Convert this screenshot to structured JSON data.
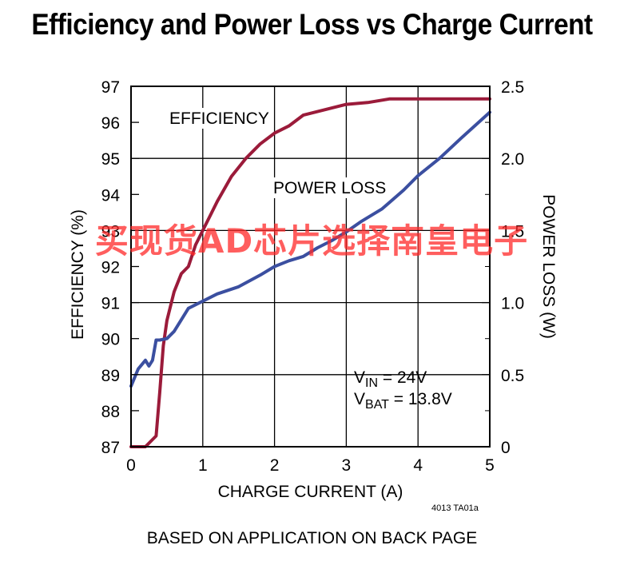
{
  "chart_data": {
    "type": "line",
    "title": "Efficiency and Power Loss vs Charge Current",
    "xlabel": "CHARGE CURRENT (A)",
    "ylabel_left": "EFFICIENCY (%)",
    "ylabel_right": "POWER LOSS (W)",
    "xlim": [
      0,
      5
    ],
    "ylim_left": [
      87,
      97
    ],
    "ylim_right": [
      0,
      2.5
    ],
    "x_ticks": [
      "0",
      "1",
      "2",
      "3",
      "4",
      "5"
    ],
    "y_ticks_left": [
      "87",
      "88",
      "89",
      "90",
      "91",
      "92",
      "93",
      "94",
      "95",
      "96",
      "97"
    ],
    "y_ticks_right": [
      "0",
      "0.5",
      "1.0",
      "1.5",
      "2.0",
      "2.5"
    ],
    "grid": true,
    "series": [
      {
        "name": "EFFICIENCY",
        "axis": "left",
        "color": "#9b1b3a",
        "points": [
          [
            0.0,
            87.0
          ],
          [
            0.2,
            87.0
          ],
          [
            0.3,
            87.2
          ],
          [
            0.35,
            87.3
          ],
          [
            0.4,
            88.5
          ],
          [
            0.45,
            89.8
          ],
          [
            0.5,
            90.5
          ],
          [
            0.6,
            91.3
          ],
          [
            0.7,
            91.8
          ],
          [
            0.8,
            92.0
          ],
          [
            0.9,
            92.6
          ],
          [
            1.0,
            93.0
          ],
          [
            1.1,
            93.4
          ],
          [
            1.2,
            93.8
          ],
          [
            1.4,
            94.5
          ],
          [
            1.6,
            95.0
          ],
          [
            1.8,
            95.4
          ],
          [
            2.0,
            95.7
          ],
          [
            2.2,
            95.9
          ],
          [
            2.4,
            96.2
          ],
          [
            2.6,
            96.3
          ],
          [
            2.8,
            96.4
          ],
          [
            3.0,
            96.5
          ],
          [
            3.3,
            96.55
          ],
          [
            3.6,
            96.65
          ],
          [
            4.0,
            96.65
          ],
          [
            4.5,
            96.65
          ],
          [
            5.0,
            96.65
          ]
        ]
      },
      {
        "name": "POWER LOSS",
        "axis": "right",
        "color": "#3b4fa0",
        "points": [
          [
            0.0,
            0.42
          ],
          [
            0.1,
            0.54
          ],
          [
            0.2,
            0.6
          ],
          [
            0.25,
            0.56
          ],
          [
            0.3,
            0.6
          ],
          [
            0.35,
            0.74
          ],
          [
            0.4,
            0.74
          ],
          [
            0.5,
            0.75
          ],
          [
            0.6,
            0.8
          ],
          [
            0.7,
            0.88
          ],
          [
            0.8,
            0.96
          ],
          [
            1.0,
            1.01
          ],
          [
            1.2,
            1.06
          ],
          [
            1.5,
            1.11
          ],
          [
            1.8,
            1.19
          ],
          [
            2.0,
            1.25
          ],
          [
            2.2,
            1.29
          ],
          [
            2.4,
            1.32
          ],
          [
            2.6,
            1.38
          ],
          [
            2.8,
            1.43
          ],
          [
            3.0,
            1.49
          ],
          [
            3.2,
            1.56
          ],
          [
            3.5,
            1.65
          ],
          [
            3.8,
            1.78
          ],
          [
            4.0,
            1.88
          ],
          [
            4.3,
            2.0
          ],
          [
            4.6,
            2.14
          ],
          [
            5.0,
            2.32
          ]
        ]
      }
    ],
    "annotations": [
      {
        "id": "eff",
        "text": "EFFICIENCY"
      },
      {
        "id": "pl",
        "text": "POWER LOSS"
      },
      {
        "id": "vin_main",
        "text": "V",
        "sub": "IN",
        "rest": " = 24V"
      },
      {
        "id": "vbat_main",
        "text": "V",
        "sub": "BAT",
        "rest": " = 13.8V"
      }
    ]
  },
  "figure_code": "4013 TA01a",
  "footer": "BASED ON APPLICATION ON BACK PAGE",
  "watermark": "买现货AD芯片选择南皇电子"
}
